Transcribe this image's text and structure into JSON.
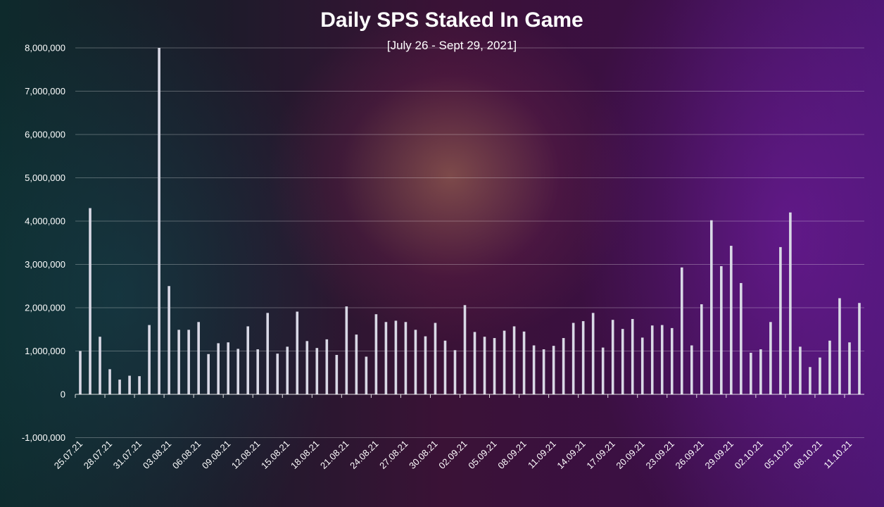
{
  "chart_data": {
    "type": "bar",
    "title": "Daily SPS Staked In Game",
    "subtitle": "[July 26 - Sept 29, 2021]",
    "xlabel": "",
    "ylabel": "",
    "ylim": [
      -1000000,
      8000000
    ],
    "yticks": [
      -1000000,
      0,
      1000000,
      2000000,
      3000000,
      4000000,
      5000000,
      6000000,
      7000000,
      8000000
    ],
    "ytick_labels": [
      "-1,000,000",
      "0",
      "1,000,000",
      "2,000,000",
      "3,000,000",
      "4,000,000",
      "5,000,000",
      "6,000,000",
      "7,000,000",
      "8,000,000"
    ],
    "grid": true,
    "legend": "none",
    "bar_color": "#d9d9e6",
    "categories": [
      "25.07.21",
      "26.07.21",
      "27.07.21",
      "28.07.21",
      "29.07.21",
      "30.07.21",
      "31.07.21",
      "01.08.21",
      "02.08.21",
      "03.08.21",
      "04.08.21",
      "05.08.21",
      "06.08.21",
      "07.08.21",
      "08.08.21",
      "09.08.21",
      "10.08.21",
      "11.08.21",
      "12.08.21",
      "13.08.21",
      "14.08.21",
      "15.08.21",
      "16.08.21",
      "17.08.21",
      "18.08.21",
      "19.08.21",
      "20.08.21",
      "21.08.21",
      "22.08.21",
      "23.08.21",
      "24.08.21",
      "25.08.21",
      "26.08.21",
      "27.08.21",
      "28.08.21",
      "29.08.21",
      "30.08.21",
      "31.08.21",
      "01.09.21",
      "02.09.21",
      "03.09.21",
      "04.09.21",
      "05.09.21",
      "06.09.21",
      "07.09.21",
      "08.09.21",
      "09.09.21",
      "10.09.21",
      "11.09.21",
      "12.09.21",
      "13.09.21",
      "14.09.21",
      "15.09.21",
      "16.09.21",
      "17.09.21",
      "18.09.21",
      "19.09.21",
      "20.09.21",
      "21.09.21",
      "22.09.21",
      "23.09.21",
      "24.09.21",
      "25.09.21",
      "26.09.21",
      "27.09.21",
      "28.09.21",
      "29.09.21",
      "30.09.21",
      "01.10.21",
      "02.10.21",
      "03.10.21",
      "04.10.21",
      "05.10.21",
      "06.10.21",
      "07.10.21",
      "08.10.21",
      "09.10.21",
      "10.10.21",
      "11.10.21",
      "12.10.21"
    ],
    "xtick_labels": [
      "25.07.21",
      "28.07.21",
      "31.07.21",
      "03.08.21",
      "06.08.21",
      "09.08.21",
      "12.08.21",
      "15.08.21",
      "18.08.21",
      "21.08.21",
      "24.08.21",
      "27.08.21",
      "30.08.21",
      "02.09.21",
      "05.09.21",
      "08.09.21",
      "11.09.21",
      "14.09.21",
      "17.09.21",
      "20.09.21",
      "23.09.21",
      "26.09.21",
      "29.09.21",
      "02.10.21",
      "05.10.21",
      "08.10.21",
      "11.10.21"
    ],
    "values": [
      1000000,
      4300000,
      1330000,
      580000,
      340000,
      430000,
      420000,
      1600000,
      8000000,
      2500000,
      1490000,
      1490000,
      1670000,
      930000,
      1180000,
      1200000,
      1050000,
      1570000,
      1040000,
      1880000,
      940000,
      1100000,
      1910000,
      1230000,
      1070000,
      1270000,
      910000,
      2030000,
      1380000,
      870000,
      1850000,
      1670000,
      1700000,
      1670000,
      1490000,
      1340000,
      1650000,
      1240000,
      1020000,
      2060000,
      1440000,
      1330000,
      1300000,
      1470000,
      1570000,
      1450000,
      1130000,
      1040000,
      1120000,
      1300000,
      1650000,
      1690000,
      1880000,
      1080000,
      1720000,
      1510000,
      1740000,
      1310000,
      1590000,
      1600000,
      1530000,
      2930000,
      1130000,
      2080000,
      4020000,
      2960000,
      3430000,
      2570000,
      960000,
      1040000,
      1670000,
      3400000,
      4200000,
      1100000,
      630000,
      850000,
      1240000,
      2220000,
      1200000,
      2110000
    ]
  }
}
